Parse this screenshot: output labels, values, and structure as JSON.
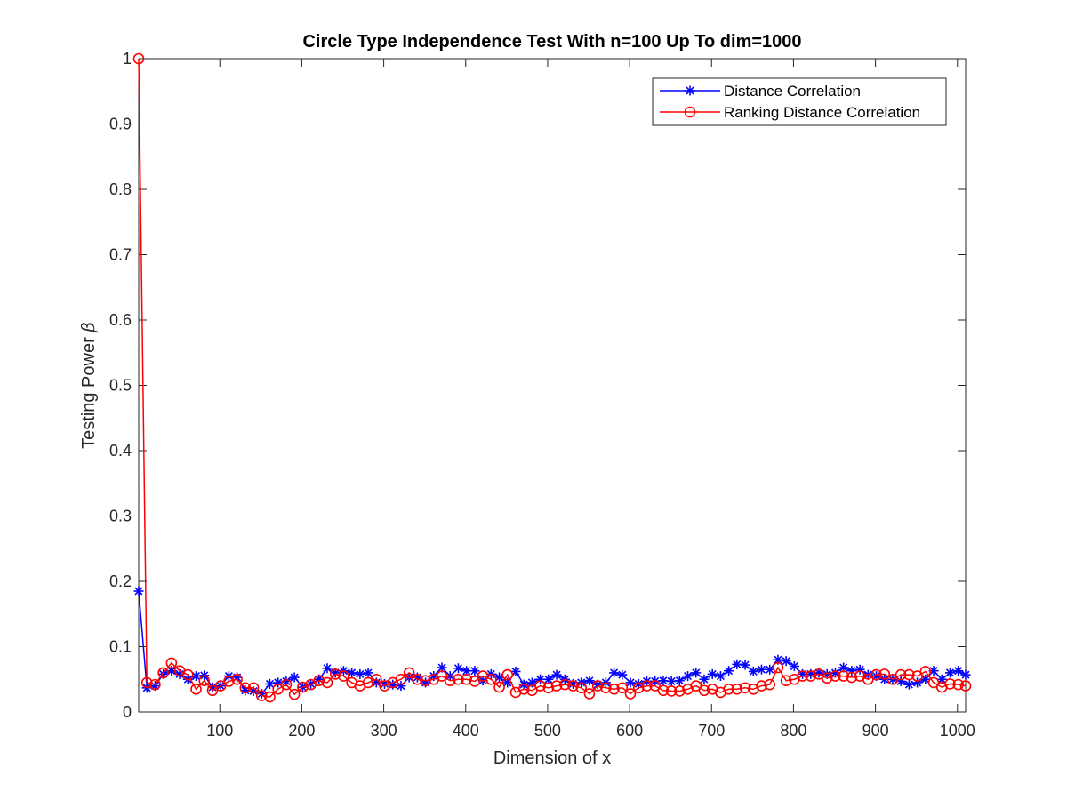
{
  "chart_data": {
    "type": "line",
    "title": "Circle Type Independence Test With n=100 Up To dim=1000",
    "xlabel": "Dimension of x",
    "ylabel_text": "Testing Power ",
    "ylabel_symbol": "β",
    "xlim": [
      1,
      1010
    ],
    "ylim": [
      0,
      1
    ],
    "xticks": [
      100,
      200,
      300,
      400,
      500,
      600,
      700,
      800,
      900,
      1000
    ],
    "yticks": [
      0,
      0.1,
      0.2,
      0.3,
      0.4,
      0.5,
      0.6,
      0.7,
      0.8,
      0.9,
      1
    ],
    "ytick_labels": [
      "0",
      "0.1",
      "0.2",
      "0.3",
      "0.4",
      "0.5",
      "0.6",
      "0.7",
      "0.8",
      "0.9",
      "1"
    ],
    "legend_position": "top-right",
    "grid": false,
    "x": [
      1,
      11,
      21,
      31,
      41,
      51,
      61,
      71,
      81,
      91,
      101,
      111,
      121,
      131,
      141,
      151,
      161,
      171,
      181,
      191,
      201,
      211,
      221,
      231,
      241,
      251,
      261,
      271,
      281,
      291,
      301,
      311,
      321,
      331,
      341,
      351,
      361,
      371,
      381,
      391,
      401,
      411,
      421,
      431,
      441,
      451,
      461,
      471,
      481,
      491,
      501,
      511,
      521,
      531,
      541,
      551,
      561,
      571,
      581,
      591,
      601,
      611,
      621,
      631,
      641,
      651,
      661,
      671,
      681,
      691,
      701,
      711,
      721,
      731,
      741,
      751,
      761,
      771,
      781,
      791,
      801,
      811,
      821,
      831,
      841,
      851,
      861,
      871,
      881,
      891,
      901,
      911,
      921,
      931,
      941,
      951,
      961,
      971,
      981,
      991,
      1001,
      1010
    ],
    "series": [
      {
        "name": "Distance Correlation",
        "color": "#0000ff",
        "marker": "asterisk",
        "values": [
          0.185,
          0.037,
          0.04,
          0.058,
          0.063,
          0.058,
          0.05,
          0.055,
          0.056,
          0.038,
          0.04,
          0.055,
          0.053,
          0.033,
          0.032,
          0.028,
          0.043,
          0.045,
          0.047,
          0.053,
          0.038,
          0.043,
          0.05,
          0.067,
          0.06,
          0.063,
          0.06,
          0.058,
          0.06,
          0.045,
          0.043,
          0.042,
          0.04,
          0.053,
          0.053,
          0.045,
          0.055,
          0.068,
          0.055,
          0.067,
          0.063,
          0.063,
          0.048,
          0.058,
          0.053,
          0.045,
          0.062,
          0.042,
          0.045,
          0.05,
          0.05,
          0.057,
          0.05,
          0.043,
          0.045,
          0.048,
          0.042,
          0.045,
          0.06,
          0.057,
          0.045,
          0.043,
          0.047,
          0.047,
          0.048,
          0.047,
          0.048,
          0.055,
          0.06,
          0.05,
          0.058,
          0.055,
          0.063,
          0.073,
          0.072,
          0.062,
          0.065,
          0.065,
          0.08,
          0.078,
          0.07,
          0.058,
          0.058,
          0.06,
          0.058,
          0.06,
          0.068,
          0.063,
          0.065,
          0.057,
          0.055,
          0.05,
          0.05,
          0.047,
          0.042,
          0.045,
          0.05,
          0.063,
          0.05,
          0.06,
          0.063,
          0.057
        ]
      },
      {
        "name": "Ranking Distance Correlation",
        "color": "#ff0000",
        "marker": "circle",
        "values": [
          1.0,
          0.045,
          0.042,
          0.06,
          0.075,
          0.063,
          0.057,
          0.035,
          0.048,
          0.033,
          0.04,
          0.047,
          0.05,
          0.037,
          0.037,
          0.025,
          0.023,
          0.035,
          0.042,
          0.027,
          0.038,
          0.042,
          0.048,
          0.045,
          0.058,
          0.055,
          0.045,
          0.04,
          0.045,
          0.05,
          0.04,
          0.045,
          0.05,
          0.06,
          0.05,
          0.048,
          0.05,
          0.055,
          0.048,
          0.05,
          0.05,
          0.047,
          0.055,
          0.05,
          0.038,
          0.057,
          0.03,
          0.035,
          0.033,
          0.04,
          0.037,
          0.04,
          0.042,
          0.04,
          0.037,
          0.028,
          0.04,
          0.037,
          0.035,
          0.037,
          0.028,
          0.037,
          0.04,
          0.04,
          0.033,
          0.032,
          0.032,
          0.035,
          0.04,
          0.033,
          0.035,
          0.03,
          0.035,
          0.035,
          0.037,
          0.035,
          0.04,
          0.042,
          0.068,
          0.048,
          0.05,
          0.055,
          0.055,
          0.058,
          0.052,
          0.055,
          0.055,
          0.053,
          0.055,
          0.05,
          0.057,
          0.058,
          0.05,
          0.057,
          0.057,
          0.055,
          0.062,
          0.045,
          0.038,
          0.043,
          0.042,
          0.04
        ]
      }
    ]
  }
}
